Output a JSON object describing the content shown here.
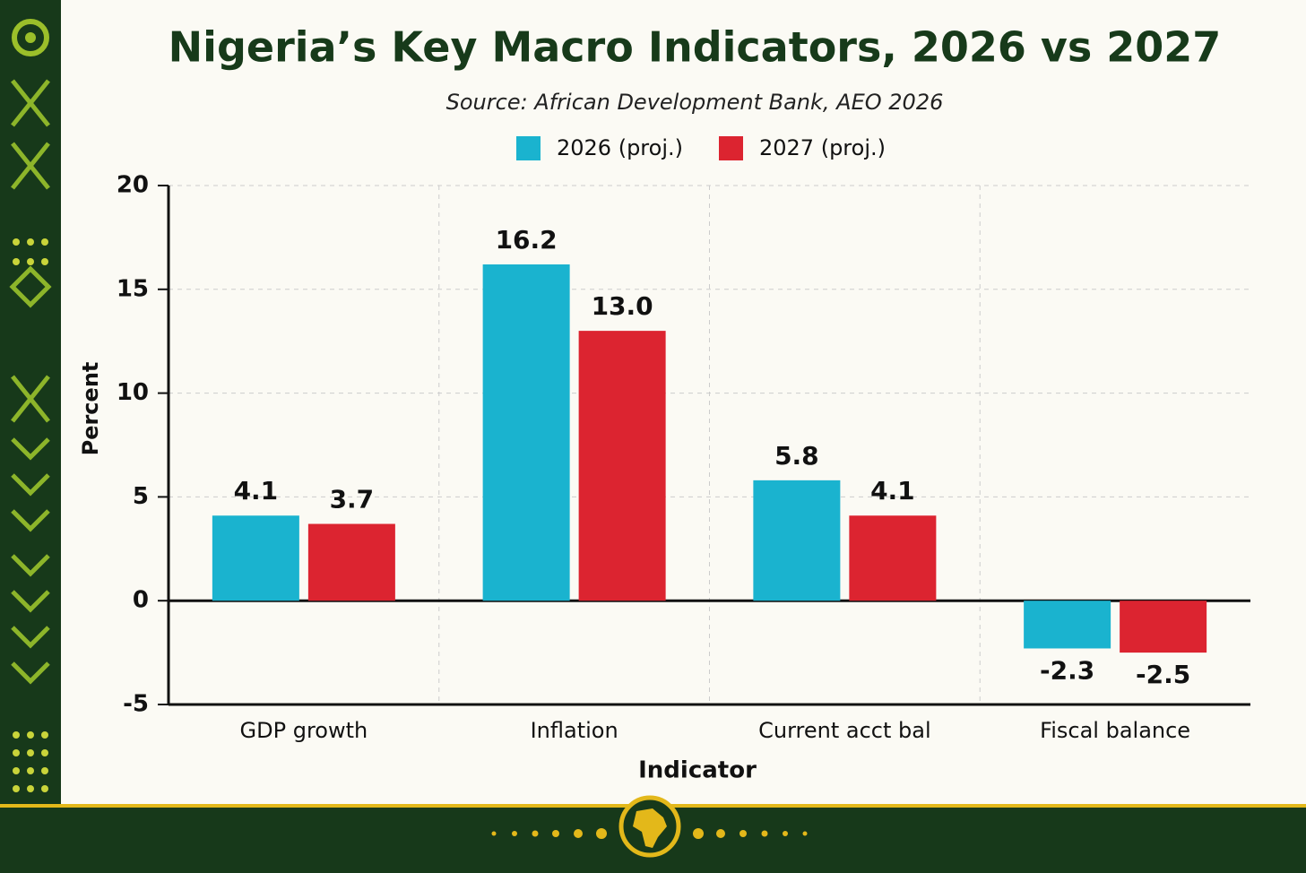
{
  "chart_data": {
    "type": "bar",
    "title": "Nigeria’s Key Macro Indicators, 2026 vs 2027",
    "subtitle": "Source: African Development Bank, AEO 2026",
    "x_label": "Indicator",
    "y_label": "Percent",
    "categories": [
      "GDP growth",
      "Inflation",
      "Current acct bal",
      "Fiscal balance"
    ],
    "series": [
      {
        "name": "2026 (proj.)",
        "color": "#1ab3cf",
        "values": [
          4.1,
          16.2,
          5.8,
          -2.3
        ],
        "value_labels": [
          "4.1",
          "16.2",
          "5.8",
          "-2.3"
        ]
      },
      {
        "name": "2027 (proj.)",
        "color": "#dc2430",
        "values": [
          3.7,
          13,
          4.1,
          -2.5
        ],
        "value_labels": [
          "3.7",
          "13.0",
          "4.1",
          "-2.5"
        ]
      }
    ],
    "ylim": [
      -5,
      20
    ],
    "yticks": [
      20,
      15,
      10,
      5,
      0,
      -5
    ],
    "grid": true
  }
}
